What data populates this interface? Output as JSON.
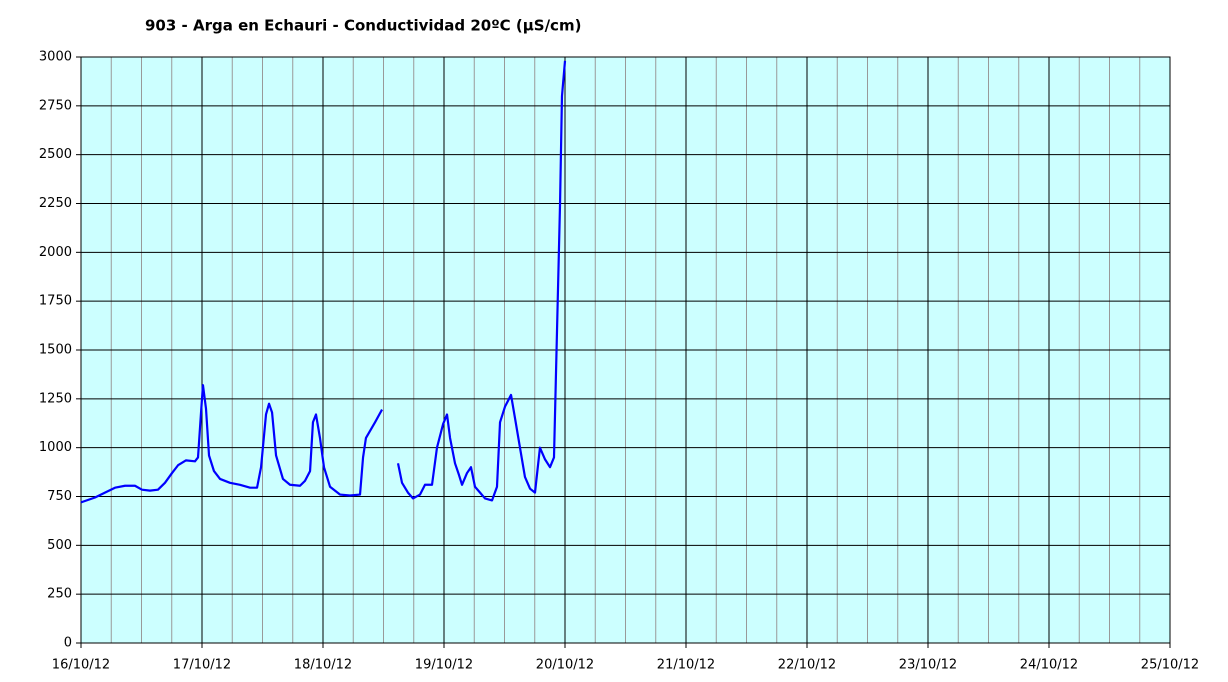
{
  "chart_data": {
    "type": "line",
    "title": "903 - Arga en Echauri - Conductividad 20ºC (µS/cm)",
    "xlim": [
      16,
      25
    ],
    "xticks": [
      {
        "value": 16,
        "label": "16/10/12"
      },
      {
        "value": 17,
        "label": "17/10/12"
      },
      {
        "value": 18,
        "label": "18/10/12"
      },
      {
        "value": 19,
        "label": "19/10/12"
      },
      {
        "value": 20,
        "label": "20/10/12"
      },
      {
        "value": 21,
        "label": "21/10/12"
      },
      {
        "value": 22,
        "label": "22/10/12"
      },
      {
        "value": 23,
        "label": "23/10/12"
      },
      {
        "value": 24,
        "label": "24/10/12"
      },
      {
        "value": 25,
        "label": "25/10/12"
      }
    ],
    "ylim": [
      0,
      3000
    ],
    "yticks": [
      0,
      250,
      500,
      750,
      1000,
      1250,
      1500,
      1750,
      2000,
      2250,
      2500,
      2750,
      3000
    ],
    "grid": true,
    "background": "#ccffff",
    "x": [
      16.0,
      16.116,
      16.198,
      16.281,
      16.364,
      16.446,
      16.504,
      16.57,
      16.636,
      16.694,
      16.752,
      16.802,
      16.868,
      16.942,
      16.967,
      16.992,
      17.008,
      17.033,
      17.058,
      17.099,
      17.149,
      17.231,
      17.314,
      17.397,
      17.455,
      17.488,
      17.529,
      17.554,
      17.579,
      17.612,
      17.669,
      17.727,
      17.81,
      17.851,
      17.893,
      17.917,
      17.942,
      17.975,
      18.008,
      18.058,
      18.14,
      18.223,
      18.306,
      18.331,
      18.355,
      18.43,
      18.488,
      18.55,
      18.62,
      18.653,
      18.702,
      18.744,
      18.802,
      18.843,
      18.901,
      18.942,
      18.992,
      19.025,
      19.05,
      19.091,
      19.124,
      19.149,
      19.19,
      19.223,
      19.256,
      19.298,
      19.339,
      19.397,
      19.438,
      19.463,
      19.504,
      19.554,
      19.587,
      19.628,
      19.669,
      19.711,
      19.752,
      19.793,
      19.835,
      19.876,
      19.909,
      19.934,
      19.959,
      19.975,
      20.0
    ],
    "series": [
      {
        "name": "Conductividad",
        "color": "#0000ff",
        "values": [
          720,
          745,
          770,
          795,
          805,
          805,
          785,
          780,
          785,
          820,
          870,
          910,
          935,
          930,
          950,
          1180,
          1320,
          1200,
          960,
          880,
          840,
          820,
          810,
          795,
          795,
          900,
          1170,
          1225,
          1180,
          960,
          840,
          810,
          805,
          830,
          880,
          1130,
          1170,
          1050,
          900,
          800,
          760,
          755,
          760,
          950,
          1050,
          1130,
          1195,
          null,
          920,
          820,
          770,
          740,
          760,
          810,
          810,
          1000,
          1120,
          1170,
          1050,
          920,
          860,
          810,
          870,
          900,
          800,
          770,
          740,
          730,
          800,
          1130,
          1210,
          1270,
          1150,
          1000,
          850,
          790,
          770,
          1000,
          940,
          900,
          950,
          1600,
          2250,
          2800,
          2980
        ]
      }
    ]
  }
}
